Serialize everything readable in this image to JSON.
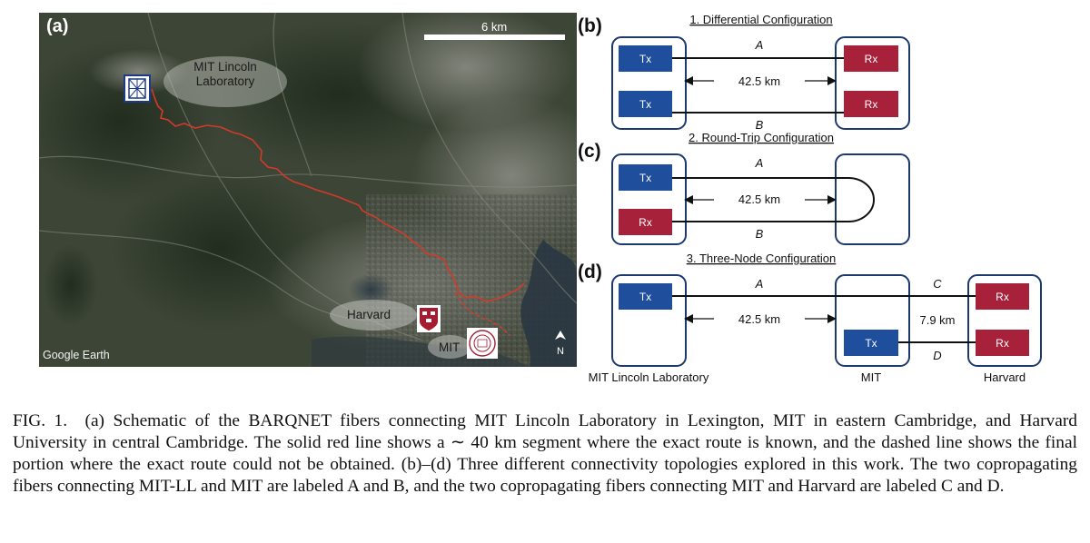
{
  "map": {
    "panel_label": "(a)",
    "scale_label": "6 km",
    "mit_ll_label_line1": "MIT Lincoln",
    "mit_ll_label_line2": "Laboratory",
    "harvard_label": "Harvard",
    "mit_label": "MIT",
    "watermark": "Google Earth"
  },
  "diagram": {
    "b": {
      "panel_label": "(b)",
      "title": "1. Differential Configuration",
      "tx1": "Tx",
      "tx2": "Tx",
      "rx1": "Rx",
      "rx2": "Rx",
      "fiber_a": "A",
      "fiber_b": "B",
      "distance": "42.5 km"
    },
    "c": {
      "panel_label": "(c)",
      "title": "2. Round-Trip Configuration",
      "tx": "Tx",
      "rx": "Rx",
      "fiber_a": "A",
      "fiber_b": "B",
      "distance": "42.5 km"
    },
    "d": {
      "panel_label": "(d)",
      "title": "3. Three-Node Configuration",
      "tx_ll": "Tx",
      "tx_mit": "Tx",
      "rx1": "Rx",
      "rx2": "Rx",
      "fiber_a": "A",
      "fiber_c": "C",
      "fiber_d": "D",
      "distance_ab": "42.5 km",
      "distance_cd": "7.9 km",
      "node_ll": "MIT Lincoln Laboratory",
      "node_mit": "MIT",
      "node_harvard": "Harvard"
    },
    "colors": {
      "tx": "#1f4e9c",
      "rx": "#a8213a",
      "frame": "#1c3a6e",
      "route": "#d23a2a"
    }
  },
  "caption": {
    "text": "FIG. 1. (a) Schematic of the BARQNET fibers connecting MIT Lincoln Laboratory in Lexington, MIT in eastern Cambridge, and Harvard University in central Cambridge. The solid red line shows a ∼ 40 km segment where the exact route is known, and the dashed line shows the final portion where the exact route could not be obtained. (b)–(d) Three different connectivity topologies explored in this work. The two copropagating fibers connecting MIT-LL and MIT are labeled A and B, and the two copropagating fibers connecting MIT and Harvard are labeled C and D."
  }
}
